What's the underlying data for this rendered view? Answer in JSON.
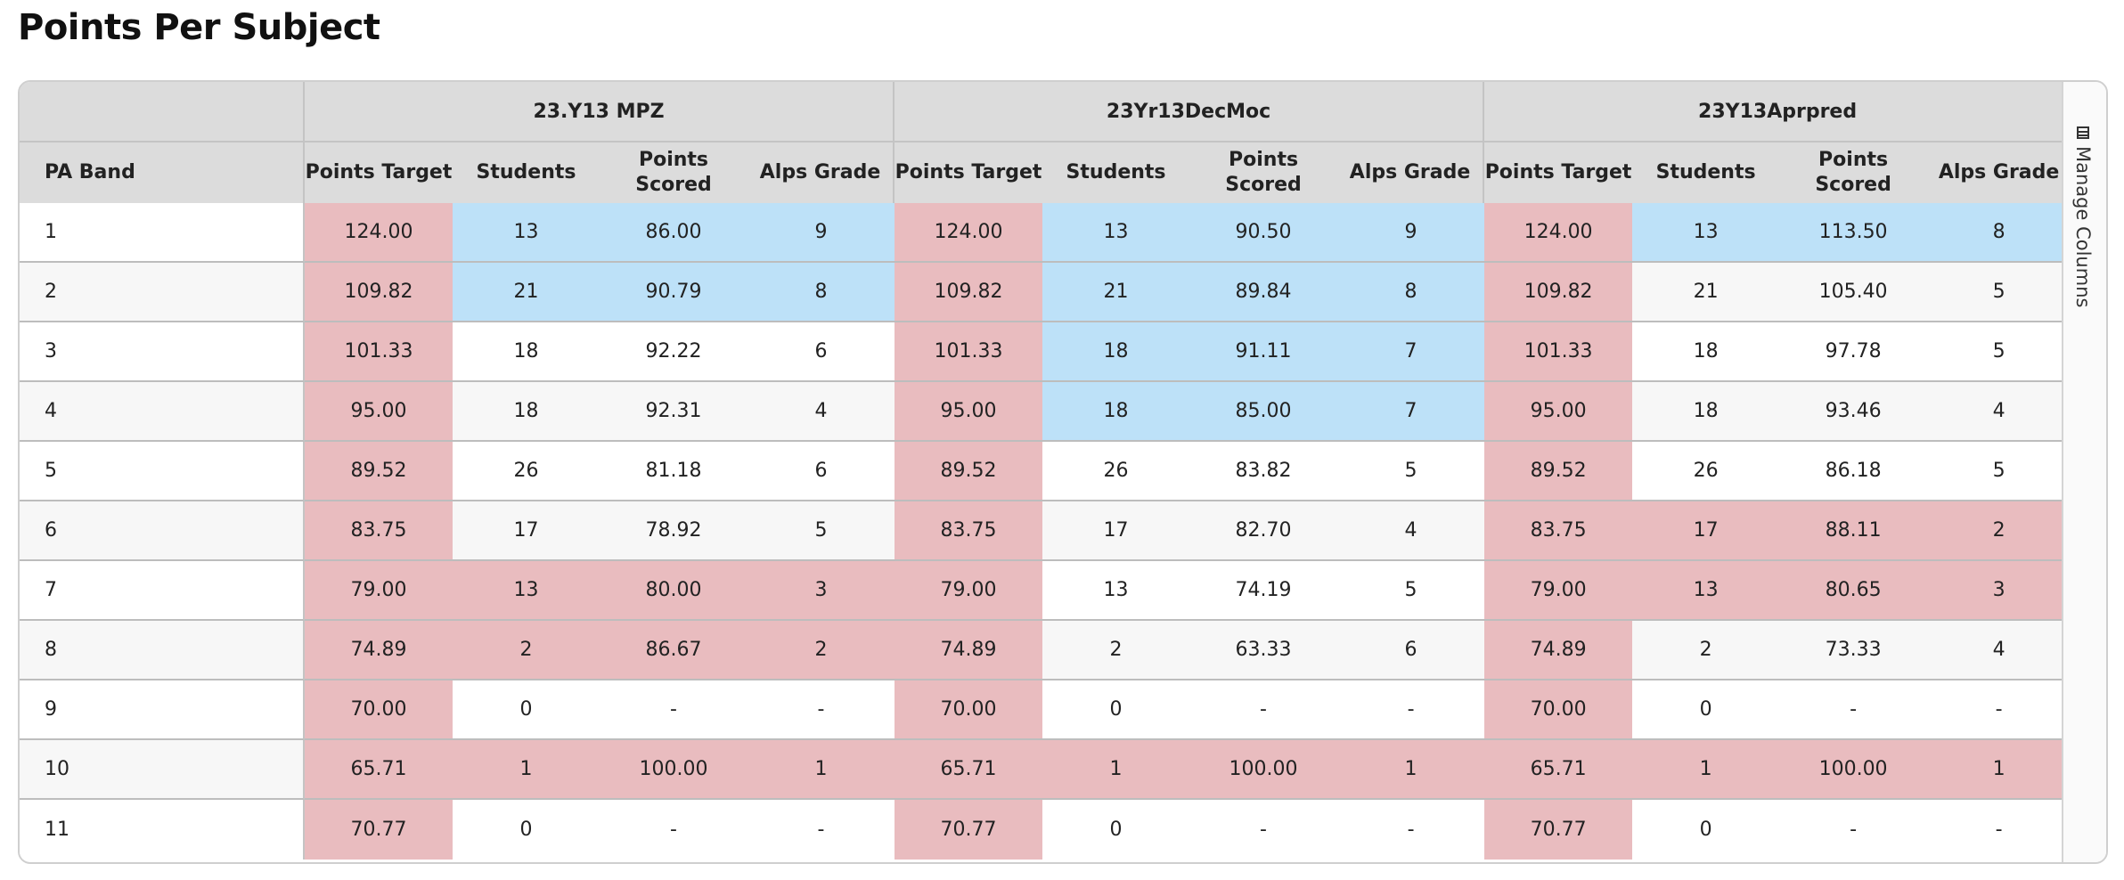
{
  "page_title": "Points Per Subject",
  "table": {
    "band_header": "PA Band",
    "groups": [
      "23.Y13 MPZ",
      "23Yr13DecMoc",
      "23Y13Aprpred"
    ],
    "sub_headers": [
      "Points Target",
      "Students",
      "Points Scored",
      "Alps Grade"
    ],
    "rows": [
      {
        "band": "1",
        "cells": [
          "124.00",
          "13",
          "86.00",
          "9",
          "124.00",
          "13",
          "90.50",
          "9",
          "124.00",
          "13",
          "113.50",
          "8"
        ]
      },
      {
        "band": "2",
        "cells": [
          "109.82",
          "21",
          "90.79",
          "8",
          "109.82",
          "21",
          "89.84",
          "8",
          "109.82",
          "21",
          "105.40",
          "5"
        ]
      },
      {
        "band": "3",
        "cells": [
          "101.33",
          "18",
          "92.22",
          "6",
          "101.33",
          "18",
          "91.11",
          "7",
          "101.33",
          "18",
          "97.78",
          "5"
        ]
      },
      {
        "band": "4",
        "cells": [
          "95.00",
          "18",
          "92.31",
          "4",
          "95.00",
          "18",
          "85.00",
          "7",
          "95.00",
          "18",
          "93.46",
          "4"
        ]
      },
      {
        "band": "5",
        "cells": [
          "89.52",
          "26",
          "81.18",
          "6",
          "89.52",
          "26",
          "83.82",
          "5",
          "89.52",
          "26",
          "86.18",
          "5"
        ]
      },
      {
        "band": "6",
        "cells": [
          "83.75",
          "17",
          "78.92",
          "5",
          "83.75",
          "17",
          "82.70",
          "4",
          "83.75",
          "17",
          "88.11",
          "2"
        ]
      },
      {
        "band": "7",
        "cells": [
          "79.00",
          "13",
          "80.00",
          "3",
          "79.00",
          "13",
          "74.19",
          "5",
          "79.00",
          "13",
          "80.65",
          "3"
        ]
      },
      {
        "band": "8",
        "cells": [
          "74.89",
          "2",
          "86.67",
          "2",
          "74.89",
          "2",
          "63.33",
          "6",
          "74.89",
          "2",
          "73.33",
          "4"
        ]
      },
      {
        "band": "9",
        "cells": [
          "70.00",
          "0",
          "-",
          "-",
          "70.00",
          "0",
          "-",
          "-",
          "70.00",
          "0",
          "-",
          "-"
        ]
      },
      {
        "band": "10",
        "cells": [
          "65.71",
          "1",
          "100.00",
          "1",
          "65.71",
          "1",
          "100.00",
          "1",
          "65.71",
          "1",
          "100.00",
          "1"
        ]
      },
      {
        "band": "11",
        "cells": [
          "70.77",
          "0",
          "-",
          "-",
          "70.77",
          "0",
          "-",
          "-",
          "70.77",
          "0",
          "-",
          "-"
        ]
      }
    ],
    "highlights": [
      [
        "r",
        "b",
        "b",
        "b",
        "r",
        "b",
        "b",
        "b",
        "r",
        "b",
        "b",
        "b"
      ],
      [
        "r",
        "b",
        "b",
        "b",
        "r",
        "b",
        "b",
        "b",
        "r",
        "",
        "",
        ""
      ],
      [
        "r",
        "",
        "",
        "",
        "r",
        "b",
        "b",
        "b",
        "r",
        "",
        "",
        ""
      ],
      [
        "r",
        "",
        "",
        "",
        "r",
        "b",
        "b",
        "b",
        "r",
        "",
        "",
        ""
      ],
      [
        "r",
        "",
        "",
        "",
        "r",
        "",
        "",
        "",
        "r",
        "",
        "",
        ""
      ],
      [
        "r",
        "",
        "",
        "",
        "r",
        "",
        "",
        "",
        "r",
        "r",
        "r",
        "r"
      ],
      [
        "r",
        "r",
        "r",
        "r",
        "r",
        "",
        "",
        "",
        "r",
        "r",
        "r",
        "r"
      ],
      [
        "r",
        "r",
        "r",
        "r",
        "r",
        "",
        "",
        "",
        "r",
        "",
        "",
        ""
      ],
      [
        "r",
        "",
        "",
        "",
        "r",
        "",
        "",
        "",
        "r",
        "",
        "",
        ""
      ],
      [
        "r",
        "r",
        "r",
        "r",
        "r",
        "r",
        "r",
        "r",
        "r",
        "r",
        "r",
        "r"
      ],
      [
        "r",
        "",
        "",
        "",
        "r",
        "",
        "",
        "",
        "r",
        "",
        "",
        ""
      ]
    ]
  },
  "side_panel": {
    "manage_columns_label": "Manage Columns",
    "icon": "columns-icon"
  },
  "colors": {
    "below_target": "#e9bcbf",
    "above_target": "#bde1f8",
    "header_bg": "#dcdcdc"
  }
}
